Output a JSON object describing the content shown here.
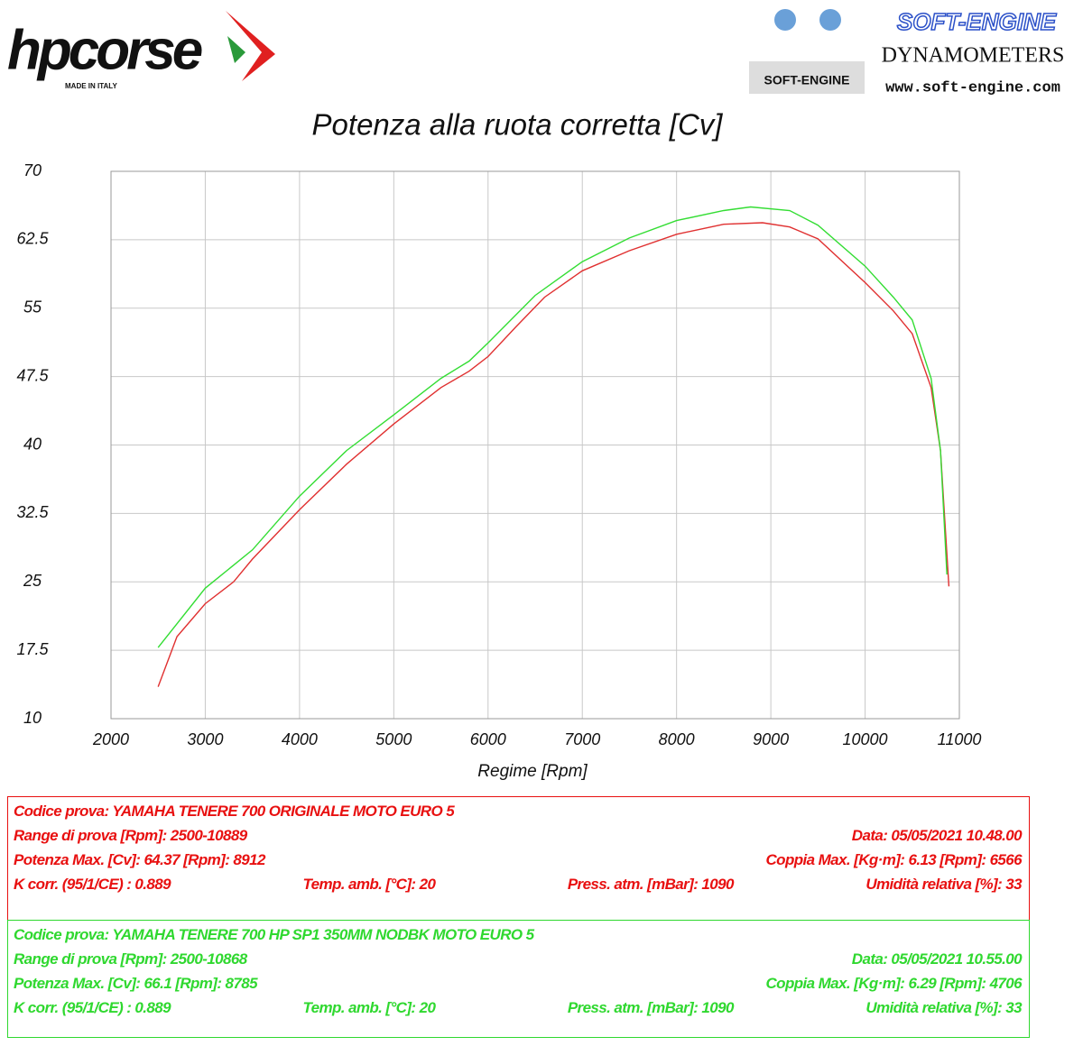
{
  "header": {
    "brand": "hpcorse",
    "brand_tagline": "MADE IN ITALY",
    "dyno_brand": "SOFT-ENGINE",
    "dyno_subtitle": "DYNAMOMETERS",
    "dyno_url": "www.soft-engine.com",
    "dyno_badge": "SOFT-ENGINE"
  },
  "chart_data": {
    "type": "line",
    "title": "Potenza alla ruota corretta [Cv]",
    "x_label": "Regime [Rpm]",
    "xlim": [
      2000,
      11000
    ],
    "xticks": [
      2000,
      3000,
      4000,
      5000,
      6000,
      7000,
      8000,
      9000,
      10000,
      11000
    ],
    "ylim": [
      10,
      70
    ],
    "yticks": [
      70,
      62.5,
      55,
      47.5,
      40,
      32.5,
      25,
      17.5,
      10
    ],
    "grid": true,
    "series": [
      {
        "color": "#e03030",
        "x": [
          2500,
          2700,
          3000,
          3300,
          3500,
          4000,
          4500,
          5000,
          5500,
          5800,
          6000,
          6300,
          6600,
          7000,
          7500,
          8000,
          8500,
          8912,
          9200,
          9500,
          10000,
          10300,
          10500,
          10700,
          10800,
          10889
        ],
        "values": [
          13.5,
          19.0,
          22.6,
          25.0,
          27.5,
          32.9,
          37.9,
          42.3,
          46.3,
          48.1,
          49.7,
          53.0,
          56.2,
          59.1,
          61.3,
          63.1,
          64.2,
          64.37,
          63.9,
          62.6,
          57.8,
          54.7,
          52.2,
          46.3,
          39.4,
          24.5
        ]
      },
      {
        "color": "#33dd33",
        "x": [
          2500,
          3000,
          3500,
          4000,
          4500,
          5000,
          5500,
          5800,
          6000,
          6500,
          7000,
          7500,
          8000,
          8500,
          8785,
          9200,
          9500,
          10000,
          10300,
          10500,
          10700,
          10800,
          10868
        ],
        "values": [
          17.8,
          24.3,
          28.5,
          34.4,
          39.4,
          43.3,
          47.3,
          49.2,
          51.2,
          56.4,
          60.1,
          62.7,
          64.6,
          65.7,
          66.1,
          65.7,
          64.1,
          59.6,
          56.2,
          53.7,
          47.3,
          39.4,
          25.8
        ]
      }
    ]
  },
  "test_boxes": [
    {
      "color": "#e81010",
      "rows": [
        [
          "Codice prova: YAMAHA TENERE 700 ORIGINALE  MOTO EURO 5"
        ],
        [
          "Range di prova [Rpm]: 2500-10889",
          "Data: 05/05/2021  10.48.00"
        ],
        [
          "Potenza Max. [Cv]: 64.37  [Rpm]: 8912",
          "Coppia Max. [Kg·m]: 6.13  [Rpm]: 6566"
        ],
        [
          "K corr. (95/1/CE) : 0.889",
          "Temp. amb. [°C]: 20",
          "Press. atm. [mBar]: 1090",
          "Umidità relativa [%]: 33"
        ]
      ]
    },
    {
      "color": "#2fd82f",
      "rows": [
        [
          "Codice prova: YAMAHA TENERE 700 HP SP1 350MM NODBK  MOTO EURO 5"
        ],
        [
          "Range di prova [Rpm]: 2500-10868",
          "Data: 05/05/2021  10.55.00"
        ],
        [
          "Potenza Max. [Cv]: 66.1  [Rpm]: 8785",
          "Coppia Max. [Kg·m]: 6.29  [Rpm]: 4706"
        ],
        [
          "K corr. (95/1/CE) : 0.889",
          "Temp. amb. [°C]: 20",
          "Press. atm. [mBar]: 1090",
          "Umidità relativa [%]: 33"
        ]
      ]
    }
  ]
}
